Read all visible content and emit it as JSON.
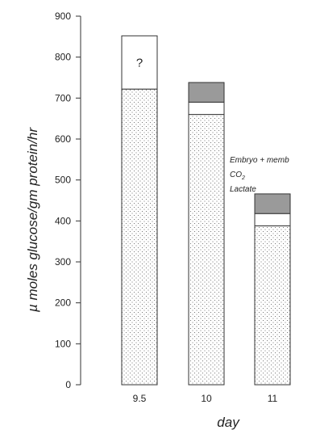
{
  "chart_data": {
    "type": "bar",
    "stacked": true,
    "xlabel": "day",
    "ylabel": "µ moles glucose/gm protein/hr",
    "ylim": [
      0,
      900
    ],
    "yticks": [
      0,
      100,
      200,
      300,
      400,
      500,
      600,
      700,
      800,
      900
    ],
    "categories": [
      "9.5",
      "10",
      "11"
    ],
    "series": [
      {
        "name": "Lactate",
        "values": [
          722,
          660,
          388
        ],
        "fill": "dots"
      },
      {
        "name": "CO2",
        "values": [
          0,
          30,
          30
        ],
        "fill": "white"
      },
      {
        "name": "Embryo + memb",
        "values": [
          0,
          48,
          48
        ],
        "fill": "#9a9a9a"
      }
    ],
    "unknown_segment": {
      "category": "9.5",
      "bottom": 722,
      "top": 852,
      "label": "?"
    },
    "legend": {
      "placement": "right of last bars",
      "entries": [
        {
          "series": "Embryo + memb",
          "text": "Embryo + memb"
        },
        {
          "series": "CO2",
          "text": "CO",
          "subscript": "2"
        },
        {
          "series": "Lactate",
          "text": "Lactate"
        }
      ]
    },
    "grid": false
  }
}
